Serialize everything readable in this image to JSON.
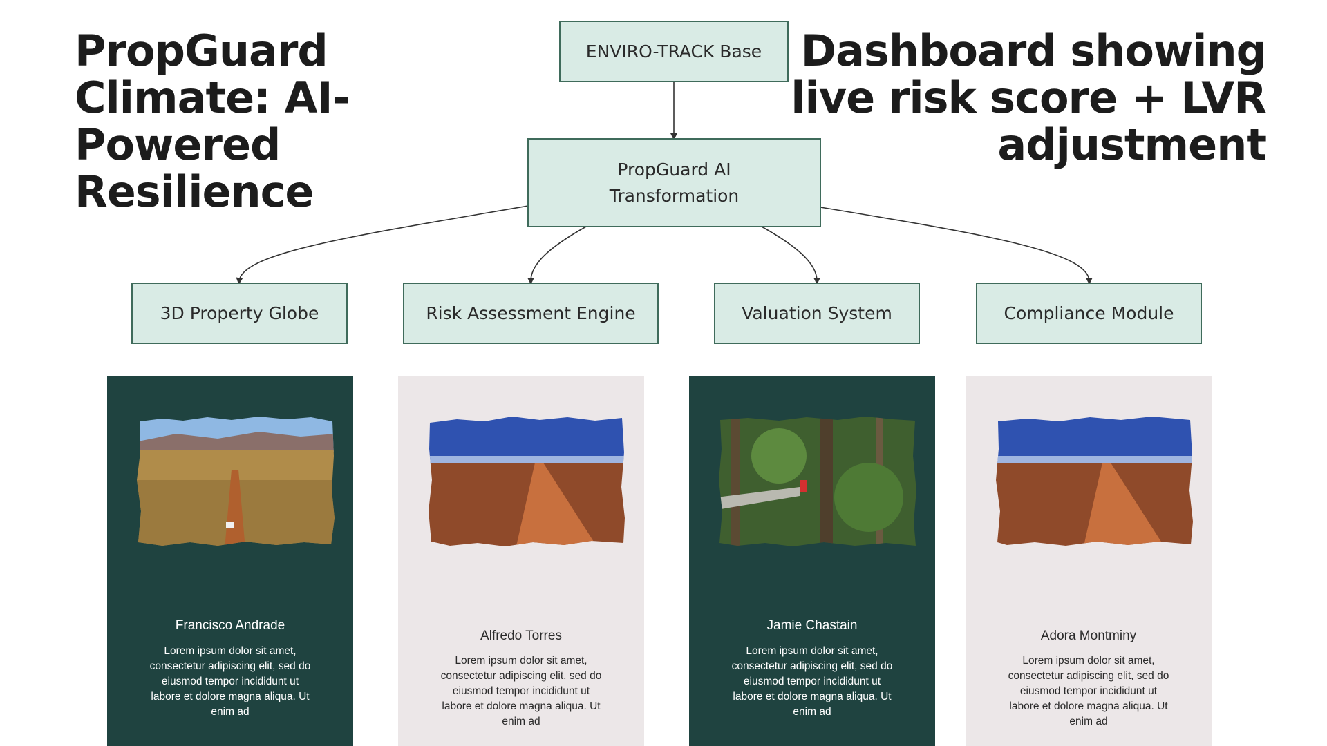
{
  "titles": {
    "left": "PropGuard Climate: AI-Powered Resilience",
    "right": "Dashboard showing live risk score + LVR adjustment"
  },
  "diagram": {
    "root": "ENVIRO-TRACK Base",
    "middle": "PropGuard AI Transformation",
    "modules": [
      "3D Property Globe",
      "Risk Assessment Engine",
      "Valuation System",
      "Compliance Module"
    ]
  },
  "cards": [
    {
      "name": "Francisco Andrade",
      "text": "Lorem ipsum dolor sit amet, consectetur adipiscing elit, sed do eiusmod tempor incididunt ut labore et dolore magna aliqua. Ut enim ad",
      "photo": "outback-road-photo"
    },
    {
      "name": "Alfredo Torres",
      "text": "Lorem ipsum dolor sit amet, consectetur adipiscing elit, sed do eiusmod tempor incididunt ut labore et dolore magna aliqua. Ut enim ad",
      "photo": "red-desert-road-photo"
    },
    {
      "name": "Jamie Chastain",
      "text": "Lorem ipsum dolor sit amet, consectetur adipiscing elit, sed do eiusmod tempor incididunt ut labore et dolore magna aliqua. Ut enim ad",
      "photo": "rainforest-walkway-photo"
    },
    {
      "name": "Adora Montminy",
      "text": "Lorem ipsum dolor sit amet, consectetur adipiscing elit, sed do eiusmod tempor incididunt ut labore et dolore magna aliqua. Ut enim ad",
      "photo": "red-desert-road-photo"
    }
  ],
  "colors": {
    "node_fill": "#d9ebe5",
    "node_border": "#3f6b5b",
    "card_dark": "#1f4340",
    "card_light": "#ece7e8"
  }
}
